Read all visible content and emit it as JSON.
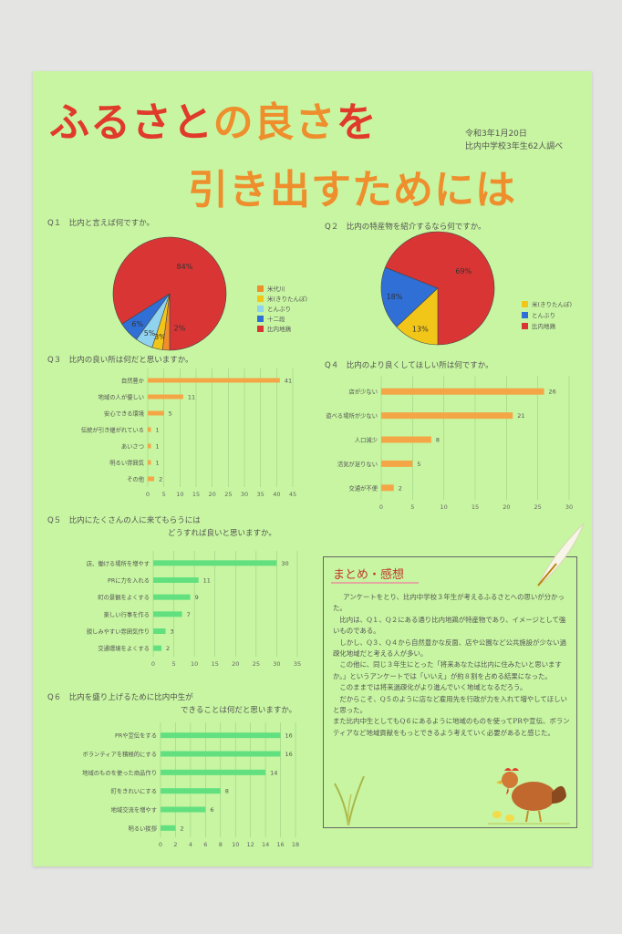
{
  "title": {
    "line1_red": "ふるさと",
    "line1_orange": "の良さ",
    "line1_red2": "を",
    "line2": "引き出すためには"
  },
  "meta": {
    "date": "令和3年1月20日",
    "author": "比内中学校3年生62人調べ"
  },
  "q1_title": "Q１　比内と言えば何ですか。",
  "q2_title": "Q２　比内の特産物を紹介するなら何ですか。",
  "q3_title": "Q３　比内の良い所は何だと思いますか。",
  "q4_title": "Q４　比内のより良くしてほしい所は何ですか。",
  "q5_title_1": "Q５　比内にたくさんの人に来てもらうには",
  "q5_title_2": "どうすれば良いと思いますか。",
  "q6_title_1": "Q６　比内を盛り上げるために比内中生が",
  "q6_title_2": "できることは何だと思いますか。",
  "summary": {
    "title": "まとめ・感想",
    "paragraphs": [
      "アンケートをとり、比内中学校３年生が考えるふるさとへの思いが分かった。",
      "比内は、Q１、Q２にある通り比内地鶏が特産物であり、イメージとして強いものである。",
      "しかし、Q３、Q４から自然豊かな反面、店や公園など公共施設が少ない過疎化地域だと考える人が多い。",
      "この他に、同じ３年生にとった「将来あなたは比内に住みたいと思いますか。」というアンケートでは「いいえ」が約８割を占める結果になった。",
      "このままでは将来過疎化がより進んでいく地域となるだろう。",
      "だからこそ、Q５のように店など雇用先を行政が力を入れて増やしてほしいと思った。",
      "また比内中生としてもQ６にあるように地域のものを使ってPRや宣伝、ボランティアなど地域貢献をもっとできるよう考えていく必要があると感じた。"
    ]
  },
  "chart_data": [
    {
      "type": "pie",
      "title": "比内と言えば何ですか。",
      "labels": [
        "比内地鶏",
        "十二段",
        "とんぶり",
        "米(きりたんぽ)",
        "米代川"
      ],
      "values": [
        84,
        6,
        5,
        3,
        2
      ],
      "colors": [
        "#d93535",
        "#2f6fd6",
        "#8fd3ef",
        "#f2c618",
        "#f08e2a"
      ],
      "legend": [
        "米代川",
        "米(きりたんぽ)",
        "とんぶり",
        "十二段",
        "比内地鶏"
      ],
      "legend_colors": [
        "#f08e2a",
        "#f2c618",
        "#8fd3ef",
        "#2f6fd6",
        "#d93535"
      ],
      "slice_labels": [
        "84%",
        "6%",
        "5%",
        "3%",
        "2%"
      ]
    },
    {
      "type": "pie",
      "title": "比内の特産物を紹介するなら何ですか。",
      "labels": [
        "比内地鶏",
        "とんぶり",
        "米(きりたんぽ)"
      ],
      "values": [
        69,
        18,
        13
      ],
      "colors": [
        "#d93535",
        "#2f6fd6",
        "#f2c618"
      ],
      "legend": [
        "米(きりたんぽ)",
        "とんぶり",
        "比内地鶏"
      ],
      "legend_colors": [
        "#f2c618",
        "#2f6fd6",
        "#d93535"
      ],
      "slice_labels": [
        "69%",
        "18%",
        "13%"
      ]
    },
    {
      "type": "bar",
      "orientation": "horizontal",
      "title": "比内の良い所は何だと思いますか。",
      "categories": [
        "自然豊か",
        "地域の人が優しい",
        "安心できる環境",
        "伝統が引き継がれている",
        "あいさつ",
        "明るい雰囲気",
        "その他"
      ],
      "values": [
        41,
        11,
        5,
        1,
        1,
        1,
        2
      ],
      "xlim": [
        0,
        45
      ],
      "ticks": [
        0,
        5,
        10,
        15,
        20,
        25,
        30,
        35,
        40,
        45
      ],
      "color": "#f4a646"
    },
    {
      "type": "bar",
      "orientation": "horizontal",
      "title": "比内のより良くしてほしい所は何ですか。",
      "categories": [
        "店が少ない",
        "遊べる場所が少ない",
        "人口減少",
        "活気が足りない",
        "交通が不便"
      ],
      "values": [
        26,
        21,
        8,
        5,
        2
      ],
      "xlim": [
        0,
        30
      ],
      "ticks": [
        0,
        5,
        10,
        15,
        20,
        25,
        30
      ],
      "color": "#f4a646"
    },
    {
      "type": "bar",
      "orientation": "horizontal",
      "title": "比内にたくさんの人に来てもらうにはどうすれば良いと思いますか。",
      "categories": [
        "店、働ける場所を増やす",
        "PRに力を入れる",
        "町の景観をよくする",
        "楽しい行事を作る",
        "親しみやすい雰囲気作り",
        "交通環境をよくする"
      ],
      "values": [
        30,
        11,
        9,
        7,
        3,
        2
      ],
      "xlim": [
        0,
        35
      ],
      "ticks": [
        0,
        5,
        10,
        15,
        20,
        25,
        30,
        35
      ],
      "color": "#62e07f"
    },
    {
      "type": "bar",
      "orientation": "horizontal",
      "title": "比内を盛り上げるために比内中生ができることは何だと思いますか。",
      "categories": [
        "PRや宣伝をする",
        "ボランティアを積極的にする",
        "地域のものを使った商品作り",
        "町をきれいにする",
        "地域交流を増やす",
        "明るい挨拶"
      ],
      "values": [
        16,
        16,
        14,
        8,
        6,
        2
      ],
      "xlim": [
        0,
        18
      ],
      "ticks": [
        0,
        2,
        4,
        6,
        8,
        10,
        12,
        14,
        16,
        18
      ],
      "color": "#62e07f"
    }
  ]
}
